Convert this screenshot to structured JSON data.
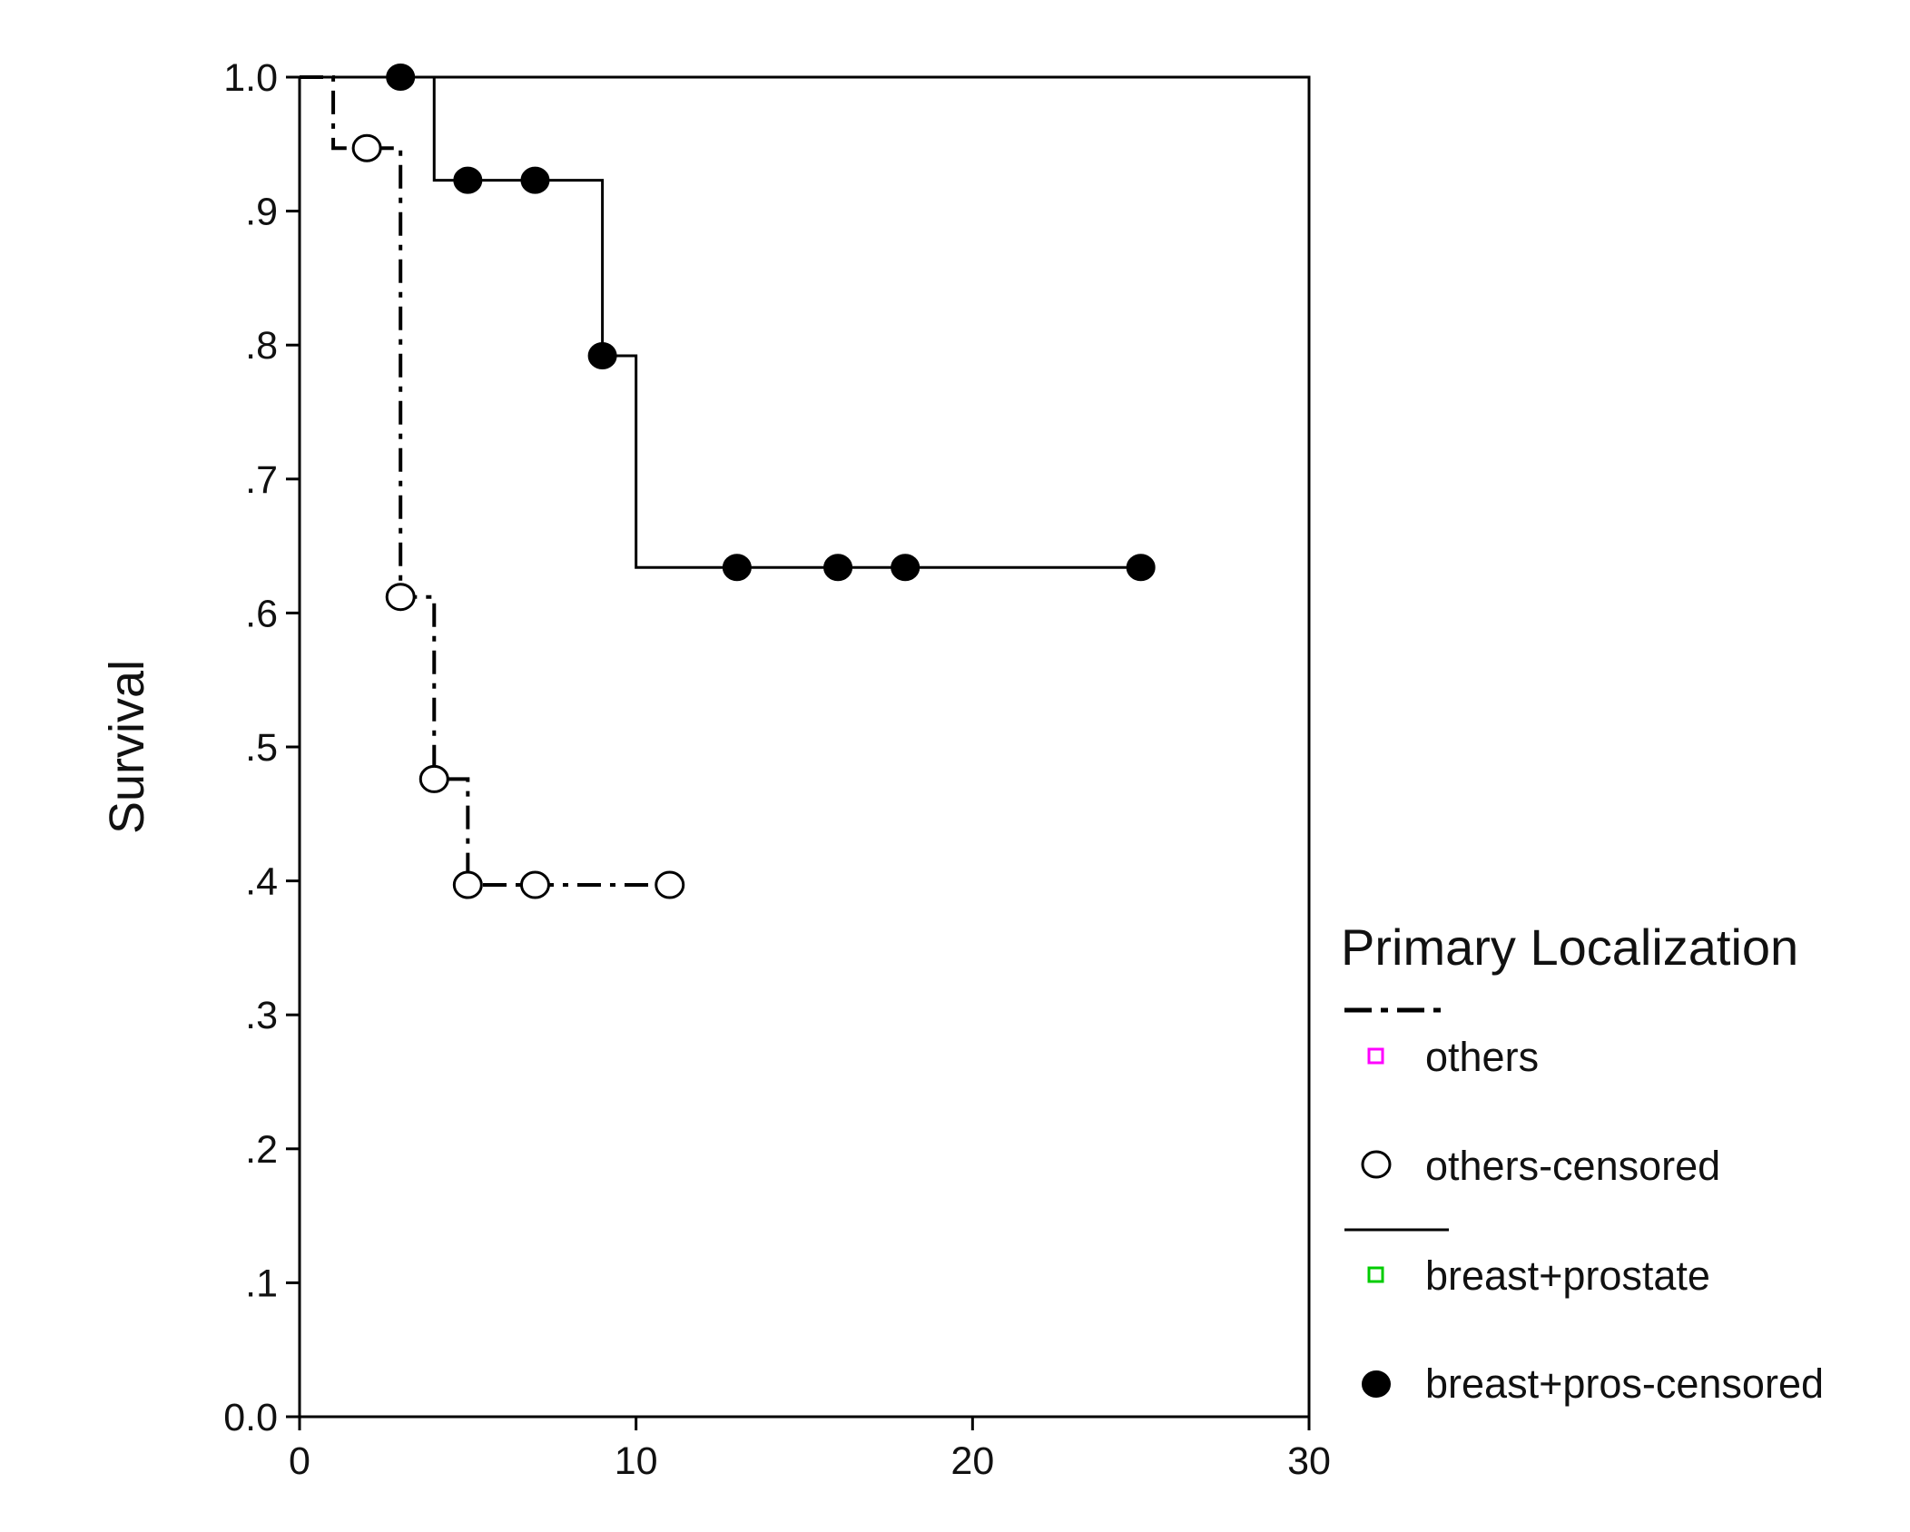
{
  "chart_data": {
    "type": "line",
    "step": true,
    "title": "",
    "xlabel": "",
    "ylabel": "Survival",
    "xlim": [
      0,
      30
    ],
    "ylim": [
      0,
      1
    ],
    "xticks": [
      0,
      10,
      20,
      30
    ],
    "xtick_labels": [
      "0",
      "10",
      "20",
      "30"
    ],
    "yticks": [
      0,
      0.1,
      0.2,
      0.3,
      0.4,
      0.5,
      0.6,
      0.7,
      0.8,
      0.9,
      1.0
    ],
    "ytick_labels": [
      "0.0",
      ".1",
      ".2",
      ".3",
      ".4",
      ".5",
      ".6",
      ".7",
      ".8",
      ".9",
      "1.0"
    ],
    "grid": false,
    "series": [
      {
        "name": "others",
        "line_style": "dash-dot",
        "marker_color": "#ff00ff",
        "steps": [
          {
            "x": 0,
            "y": 1.0
          },
          {
            "x": 1,
            "y": 0.947
          },
          {
            "x": 3,
            "y": 0.612
          },
          {
            "x": 4,
            "y": 0.476
          },
          {
            "x": 5,
            "y": 0.397
          },
          {
            "x": 11,
            "y": 0.397
          }
        ],
        "censored": {
          "name": "others-censored",
          "marker": "open-circle",
          "points": [
            {
              "x": 2,
              "y": 0.947
            },
            {
              "x": 3,
              "y": 0.612
            },
            {
              "x": 4,
              "y": 0.476
            },
            {
              "x": 5,
              "y": 0.397
            },
            {
              "x": 7,
              "y": 0.397
            },
            {
              "x": 11,
              "y": 0.397
            }
          ]
        }
      },
      {
        "name": "breast+prostate",
        "line_style": "solid",
        "marker_color": "#00cc00",
        "steps": [
          {
            "x": 0,
            "y": 1.0
          },
          {
            "x": 4,
            "y": 0.923
          },
          {
            "x": 9,
            "y": 0.792
          },
          {
            "x": 10,
            "y": 0.634
          },
          {
            "x": 25,
            "y": 0.634
          }
        ],
        "censored": {
          "name": "breast+pros-censored",
          "marker": "filled-circle",
          "points": [
            {
              "x": 3,
              "y": 1.0
            },
            {
              "x": 5,
              "y": 0.923
            },
            {
              "x": 7,
              "y": 0.923
            },
            {
              "x": 9,
              "y": 0.792
            },
            {
              "x": 13,
              "y": 0.634
            },
            {
              "x": 16,
              "y": 0.634
            },
            {
              "x": 18,
              "y": 0.634
            },
            {
              "x": 25,
              "y": 0.634
            }
          ]
        }
      }
    ],
    "legend": {
      "title": "Primary Localization",
      "placement": "right",
      "entries": [
        "others",
        "others-censored",
        "breast+prostate",
        "breast+pros-censored"
      ]
    }
  }
}
